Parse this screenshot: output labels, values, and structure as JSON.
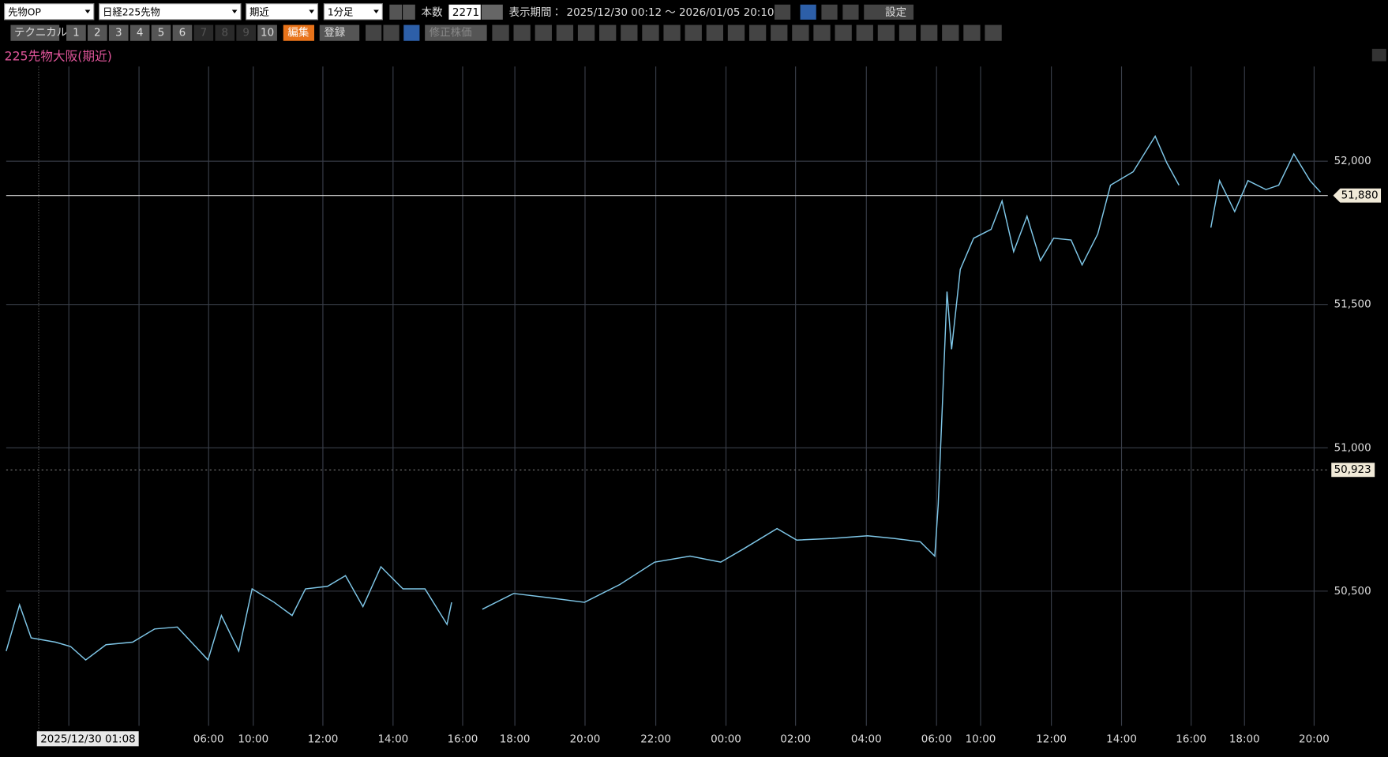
{
  "toolbar": {
    "selects": [
      "先物OP",
      "日経225先物",
      "期近",
      "1分足"
    ],
    "count_label": "本数",
    "count": "2271",
    "period_label": "表示期間：",
    "period": "2025/12/30 00:12 ～ 2026/01/05 20:10",
    "settings": "設定",
    "technical": "テクニカル",
    "presets": [
      "1",
      "2",
      "3",
      "4",
      "5",
      "6",
      "7",
      "8",
      "9",
      "10"
    ],
    "edit": "編集",
    "register": "登録",
    "adjusted": "修正株価"
  },
  "chart_data": {
    "type": "line",
    "title": "225先物大阪(期近)",
    "color": "#7fc7e8",
    "grid": true,
    "xlim": [
      0,
      2271
    ],
    "ylim": [
      50030,
      52330
    ],
    "yticks": [
      {
        "value": 50500,
        "label": "50,500"
      },
      {
        "value": 51000,
        "label": "51,000"
      },
      {
        "value": 51500,
        "label": "51,500"
      },
      {
        "value": 52000,
        "label": "52,000"
      }
    ],
    "xticks": [
      {
        "value": 108,
        "label": null
      },
      {
        "value": 229,
        "label": null
      },
      {
        "value": 349,
        "label": "06:00"
      },
      {
        "value": 426,
        "label": "10:00"
      },
      {
        "value": 546,
        "label": "12:00"
      },
      {
        "value": 667,
        "label": "14:00"
      },
      {
        "value": 787,
        "label": "16:00"
      },
      {
        "value": 877,
        "label": "18:00"
      },
      {
        "value": 998,
        "label": "20:00"
      },
      {
        "value": 1120,
        "label": "22:00"
      },
      {
        "value": 1241,
        "label": "00:00"
      },
      {
        "value": 1361,
        "label": "02:00"
      },
      {
        "value": 1483,
        "label": "04:00"
      },
      {
        "value": 1604,
        "label": "06:00"
      },
      {
        "value": 1680,
        "label": "10:00"
      },
      {
        "value": 1802,
        "label": "12:00"
      },
      {
        "value": 1923,
        "label": "14:00"
      },
      {
        "value": 2043,
        "label": "16:00"
      },
      {
        "value": 2135,
        "label": "18:00"
      },
      {
        "value": 2255,
        "label": "20:00"
      }
    ],
    "hlines": [
      {
        "value": 51880,
        "label": "51,880"
      },
      {
        "value": 50923,
        "label": "50,923"
      }
    ],
    "cursor": {
      "value": 56,
      "label": "2025/12/30 01:08"
    },
    "series": [
      {
        "name": "225先物大阪(期近)",
        "color": "#7fc7e8",
        "x": [
          0,
          23,
          43,
          85,
          111,
          137,
          172,
          218,
          256,
          295,
          348,
          371,
          401,
          424,
          462,
          493,
          516,
          554,
          585,
          615,
          646,
          684,
          722,
          760,
          768,
          795,
          821,
          875,
          936,
          997,
          1058,
          1118,
          1179,
          1232,
          1271,
          1329,
          1363,
          1424,
          1485,
          1531,
          1576,
          1601,
          1607,
          1614,
          1622,
          1630,
          1645,
          1668,
          1698,
          1717,
          1737,
          1760,
          1783,
          1806,
          1836,
          1855,
          1882,
          1904,
          1943,
          1981,
          2001,
          2022,
          2050,
          2077,
          2092,
          2118,
          2141,
          2172,
          2194,
          2220,
          2248,
          2266
        ],
        "values": [
          50291,
          50452,
          50337,
          50322,
          50307,
          50260,
          50313,
          50322,
          50368,
          50375,
          50260,
          50415,
          50291,
          50508,
          50461,
          50415,
          50508,
          50517,
          50554,
          50446,
          50585,
          50508,
          50508,
          50384,
          50461,
          null,
          50437,
          50492,
          50477,
          50461,
          50523,
          50601,
          50622,
          50601,
          50647,
          50718,
          50678,
          50684,
          50693,
          50684,
          50672,
          50622,
          50802,
          51142,
          51545,
          51344,
          51622,
          51731,
          51762,
          51861,
          51684,
          51808,
          51653,
          51731,
          51725,
          51638,
          51746,
          51916,
          51963,
          52087,
          51994,
          51916,
          null,
          51768,
          51932,
          51824,
          51932,
          51901,
          51916,
          52025,
          51932,
          51892
        ]
      }
    ]
  }
}
